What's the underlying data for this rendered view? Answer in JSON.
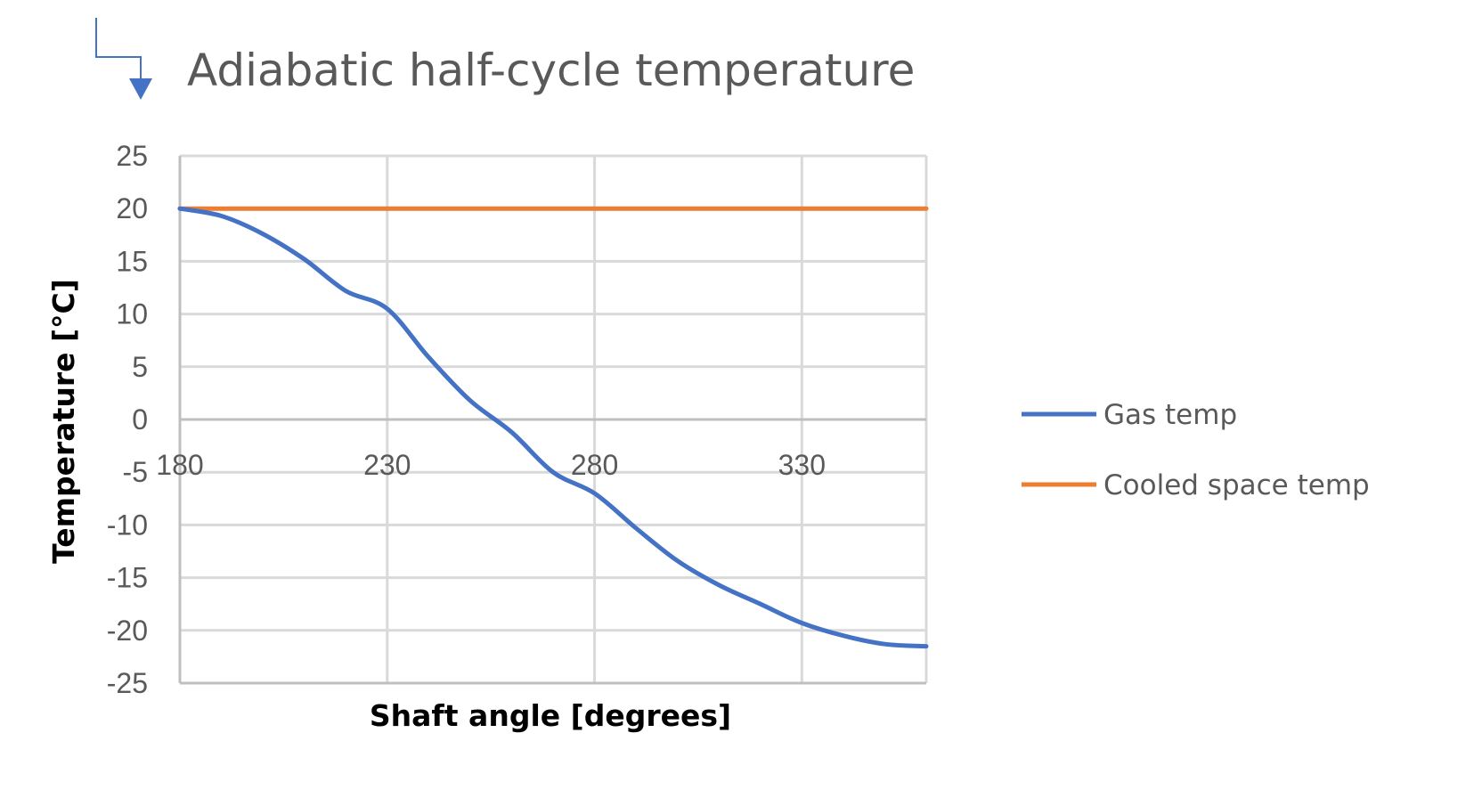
{
  "chart_data": {
    "type": "line",
    "title": "Adiabatic half-cycle temperature",
    "xlabel": "Shaft angle [degrees]",
    "ylabel": "Temperature [°C]",
    "xlim": [
      180,
      360
    ],
    "ylim": [
      -25,
      25
    ],
    "xticks": [
      180,
      230,
      280,
      330
    ],
    "yticks": [
      25,
      20,
      15,
      10,
      5,
      0,
      -5,
      -10,
      -15,
      -20,
      -25
    ],
    "grid": true,
    "legend_position": "right",
    "series": [
      {
        "name": "Gas temp",
        "color": "#4472C4",
        "x": [
          180,
          190,
          200,
          210,
          220,
          230,
          240,
          250,
          260,
          270,
          280,
          290,
          300,
          310,
          320,
          330,
          340,
          350,
          360
        ],
        "y": [
          20,
          19.3,
          17.6,
          15.2,
          12.2,
          10.5,
          5.9,
          1.8,
          -1.2,
          -5.0,
          -7.0,
          -10.3,
          -13.4,
          -15.7,
          -17.5,
          -19.3,
          -20.5,
          -21.3,
          -21.5
        ]
      },
      {
        "name": "Cooled space temp",
        "color": "#ED7D31",
        "x": [
          180,
          360
        ],
        "y": [
          20,
          20
        ]
      }
    ]
  },
  "icons": {
    "corner_arrow": "corner-arrow-icon",
    "corner_arrow_color": "#4472C4"
  }
}
